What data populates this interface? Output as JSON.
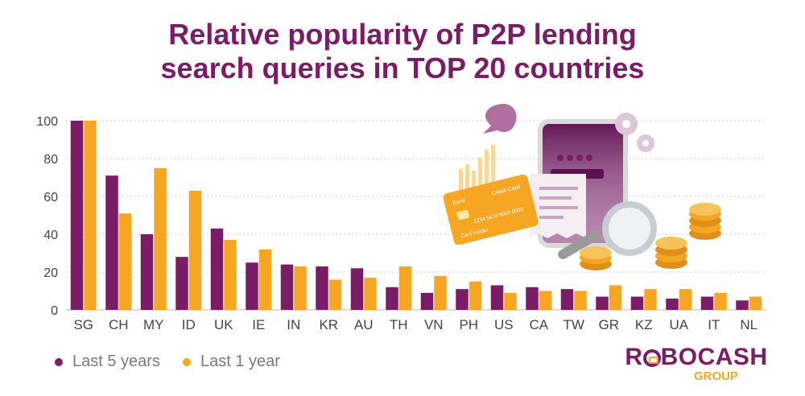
{
  "title_line1": "Relative popularity of P2P lending",
  "title_line2": "search queries in TOP 20 countries",
  "legend": {
    "series1": "Last 5 years",
    "series2": "Last 1 year"
  },
  "illustration_text": {
    "card_bank": "Bank",
    "card_type": "Credit Card",
    "card_number": "1234 5678 9000 0000",
    "card_holder": "Card Holder"
  },
  "logo": {
    "main_left": "R",
    "main_right": "BOCASH",
    "sub": "GROUP"
  },
  "colors": {
    "series1": "#7b1c66",
    "series2": "#f5a623",
    "title": "#7b1c66",
    "grid": "#cccccc"
  },
  "chart_data": {
    "type": "bar",
    "title": "Relative popularity of P2P lending search queries in TOP 20 countries",
    "categories": [
      "SG",
      "CH",
      "MY",
      "ID",
      "UK",
      "IE",
      "IN",
      "KR",
      "AU",
      "TH",
      "VN",
      "PH",
      "US",
      "CA",
      "TW",
      "GR",
      "KZ",
      "UA",
      "IT",
      "NL"
    ],
    "series": [
      {
        "name": "Last 5 years",
        "color": "#7b1c66",
        "values": [
          100,
          71,
          40,
          28,
          43,
          25,
          24,
          23,
          22,
          12,
          9,
          11,
          13,
          12,
          11,
          7,
          7,
          6,
          7,
          5
        ]
      },
      {
        "name": "Last 1 year",
        "color": "#f5a623",
        "values": [
          100,
          51,
          75,
          63,
          37,
          32,
          23,
          16,
          17,
          23,
          18,
          15,
          9,
          10,
          10,
          13,
          11,
          11,
          9,
          7
        ]
      }
    ],
    "yticks": [
      0,
      20,
      40,
      60,
      80,
      100
    ],
    "ylim": [
      0,
      100
    ],
    "grid": true,
    "legend_position": "bottom-left"
  }
}
